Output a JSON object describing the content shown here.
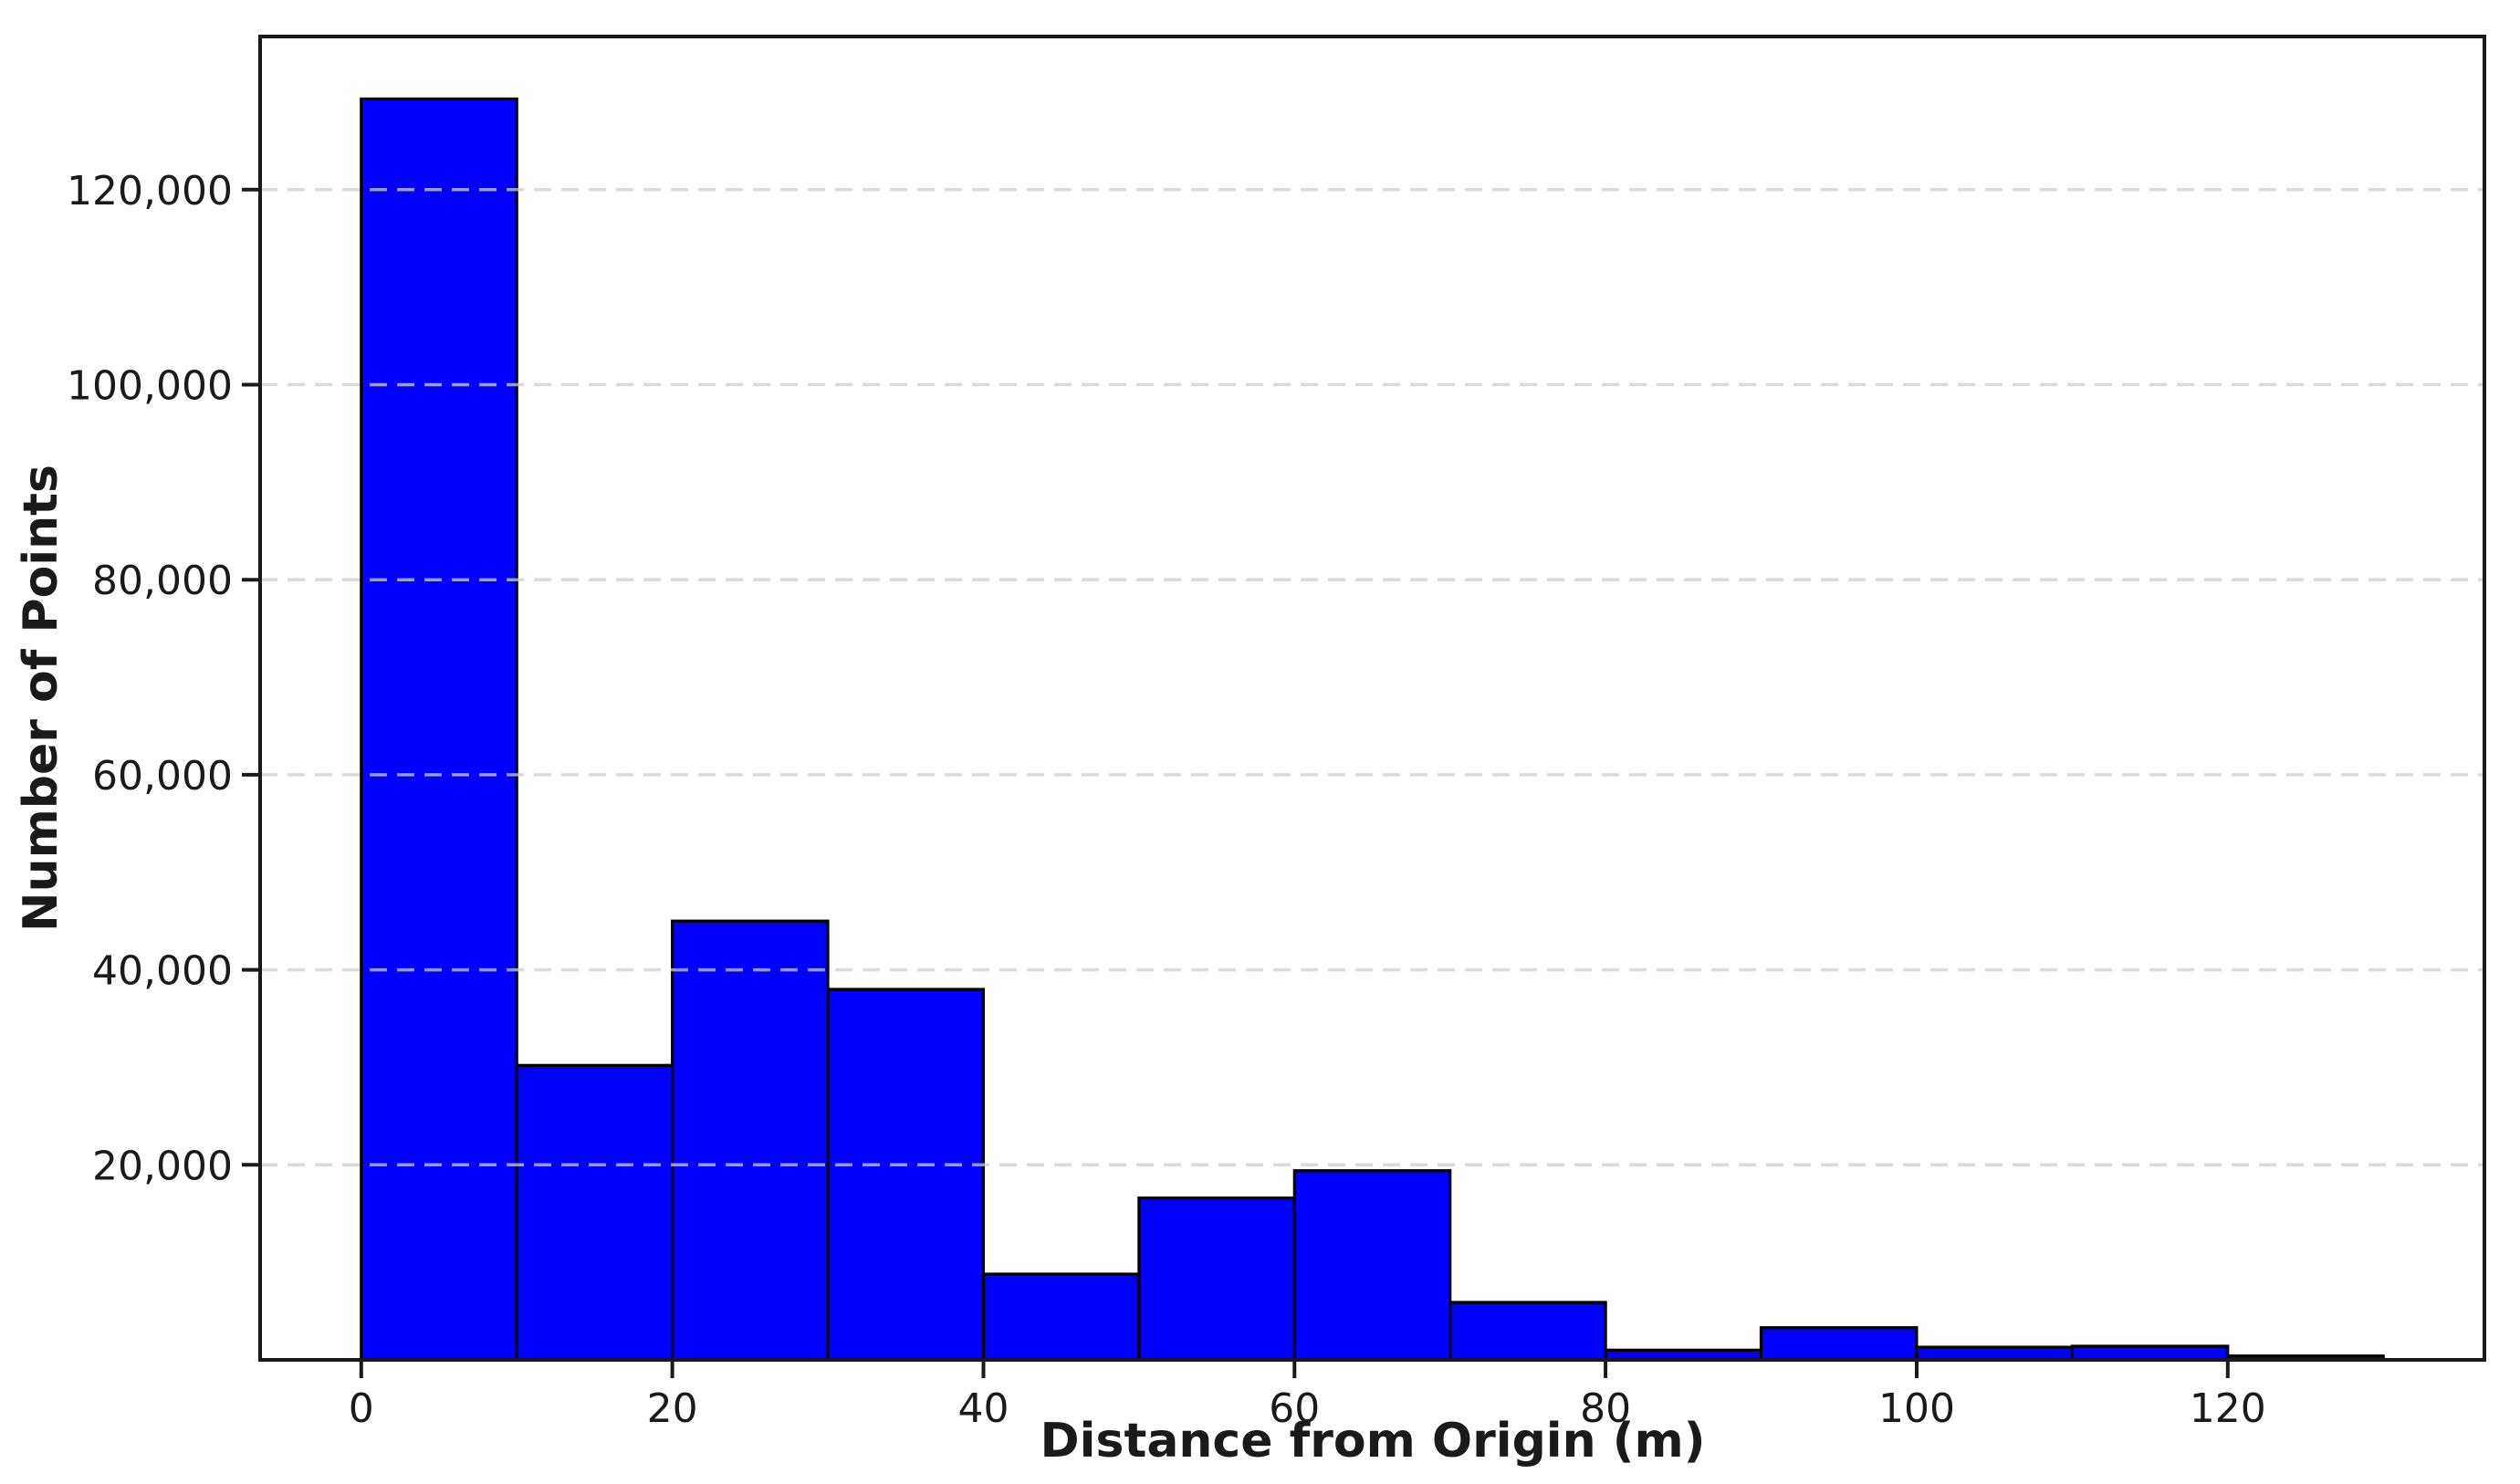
{
  "chart_data": {
    "type": "bar",
    "subtype": "histogram",
    "title": "",
    "xlabel": "Distance from Origin (m)",
    "ylabel": "Number of Points",
    "bin_edges": [
      0,
      10,
      20,
      30,
      40,
      50,
      60,
      70,
      80,
      90,
      100,
      110,
      120,
      130
    ],
    "counts": [
      129300,
      30200,
      45000,
      38000,
      8800,
      16600,
      19400,
      5900,
      1000,
      3300,
      1300,
      1400,
      400
    ],
    "x_tick_values": [
      0,
      20,
      40,
      60,
      80,
      100,
      120
    ],
    "x_tick_labels": [
      "0",
      "20",
      "40",
      "60",
      "80",
      "100",
      "120"
    ],
    "y_tick_values": [
      20000,
      40000,
      60000,
      80000,
      100000,
      120000
    ],
    "y_tick_labels": [
      "20,000",
      "40,000",
      "60,000",
      "80,000",
      "100,000",
      "120,000"
    ],
    "xlim": [
      -6.5,
      136.5
    ],
    "ylim": [
      0,
      135700
    ],
    "grid": {
      "axis": "y",
      "style": "dashed",
      "color": "#cfcfcf"
    },
    "legend_position": "none",
    "colors": {
      "bar_fill": "#0000FF",
      "bar_edge": "#000000",
      "background": "#FFFFFF",
      "text": "#1a1a1a",
      "spine": "#1a1a1a"
    }
  }
}
